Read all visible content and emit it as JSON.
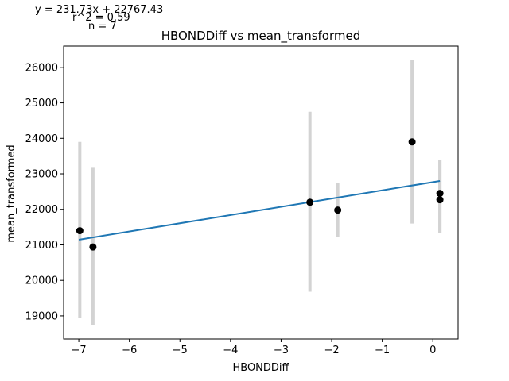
{
  "chart_data": {
    "type": "scatter",
    "title": "HBONDDiff vs mean_transformed",
    "xlabel": "HBONDDiff",
    "ylabel": "mean_transformed",
    "xlim": [
      -7.3,
      0.5
    ],
    "ylim": [
      18350,
      26600
    ],
    "xticks": [
      -7,
      -6,
      -5,
      -4,
      -3,
      -2,
      -1,
      0
    ],
    "xtick_labels": [
      "−7",
      "−6",
      "−5",
      "−4",
      "−3",
      "−2",
      "−1",
      "0"
    ],
    "yticks": [
      19000,
      20000,
      21000,
      22000,
      23000,
      24000,
      25000,
      26000
    ],
    "ytick_labels": [
      "19000",
      "20000",
      "21000",
      "22000",
      "23000",
      "24000",
      "25000",
      "26000"
    ],
    "grid": false,
    "points": [
      {
        "x": -6.98,
        "y": 21400,
        "err_low": 18950,
        "err_high": 23900
      },
      {
        "x": -6.72,
        "y": 20940,
        "err_low": 18750,
        "err_high": 23170
      },
      {
        "x": -2.43,
        "y": 22200,
        "err_low": 19680,
        "err_high": 24750
      },
      {
        "x": -1.88,
        "y": 21980,
        "err_low": 21230,
        "err_high": 22750
      },
      {
        "x": -0.41,
        "y": 23900,
        "err_low": 21600,
        "err_high": 26220
      },
      {
        "x": 0.14,
        "y": 22450,
        "err_low": 21330,
        "err_high": 23380
      },
      {
        "x": 0.14,
        "y": 22270,
        "err_low": 21330,
        "err_high": 23380
      }
    ],
    "fit_line": {
      "slope": 231.73,
      "intercept": 22767.43,
      "x_range": [
        -7.0,
        0.14
      ]
    },
    "annotations": {
      "equation": "y = 231.73x + 22767.43",
      "r_squared": "r^2 = 0.59",
      "n": "n = 7"
    },
    "colors": {
      "points": "#000000",
      "errorbars": "#d3d3d3",
      "fit_line": "#1f77b4"
    }
  }
}
